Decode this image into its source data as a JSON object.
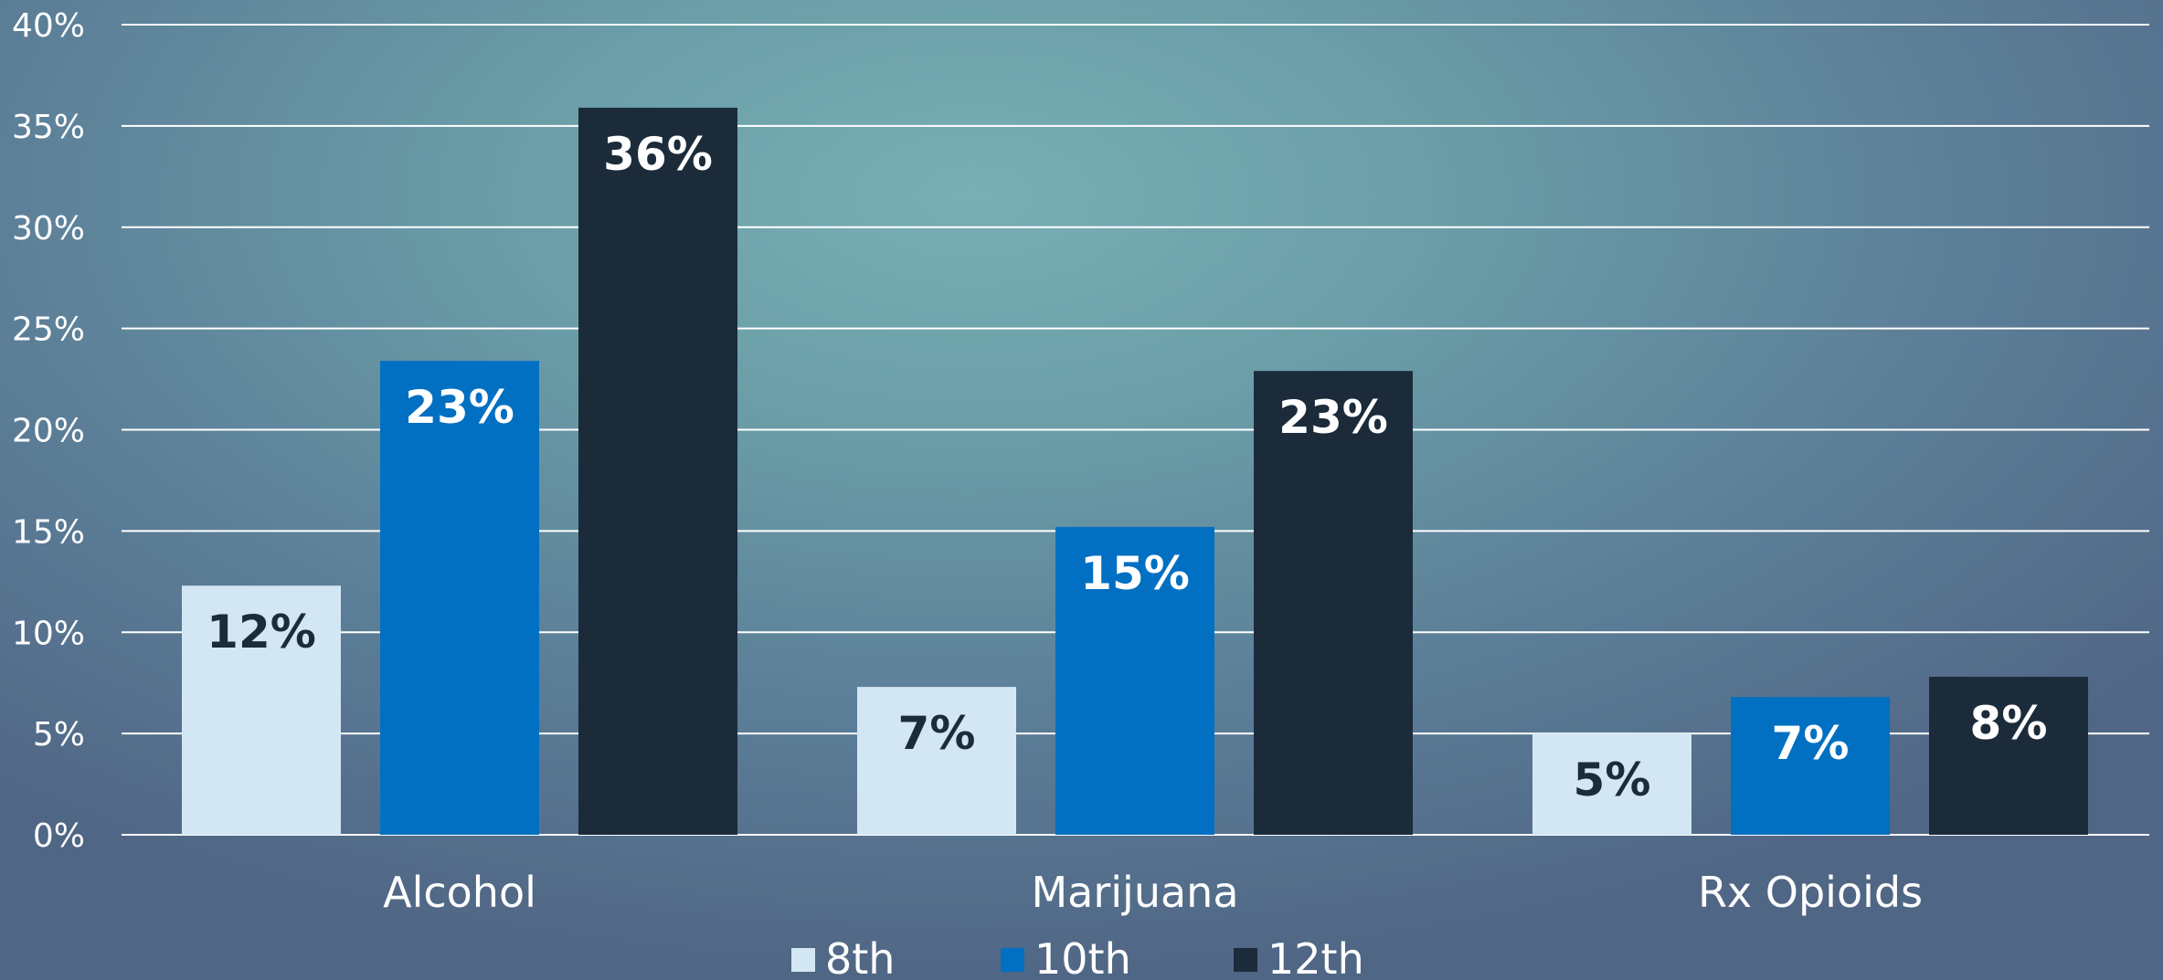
{
  "chart_data": {
    "type": "bar",
    "categories": [
      "Alcohol",
      "Marijuana",
      "Rx Opioids"
    ],
    "series": [
      {
        "name": "8th",
        "values": [
          12.3,
          7.3,
          5.0
        ],
        "labels": [
          "12%",
          "7%",
          "5%"
        ],
        "color": "#d2e6f4",
        "label_color": "#1b2b3a"
      },
      {
        "name": "10th",
        "values": [
          23.4,
          15.2,
          6.8
        ],
        "labels": [
          "23%",
          "15%",
          "7%"
        ],
        "color": "#0270c2",
        "label_color": "#ffffff"
      },
      {
        "name": "12th",
        "values": [
          35.9,
          22.9,
          7.8
        ],
        "labels": [
          "36%",
          "23%",
          "8%"
        ],
        "color": "#1b2b3a",
        "label_color": "#ffffff"
      }
    ],
    "yticks": [
      "0%",
      "5%",
      "10%",
      "15%",
      "20%",
      "25%",
      "30%",
      "35%",
      "40%"
    ],
    "ylim": [
      0,
      40
    ],
    "grid": true,
    "legend_position": "bottom-center",
    "gridline_color": "#ffffff"
  }
}
